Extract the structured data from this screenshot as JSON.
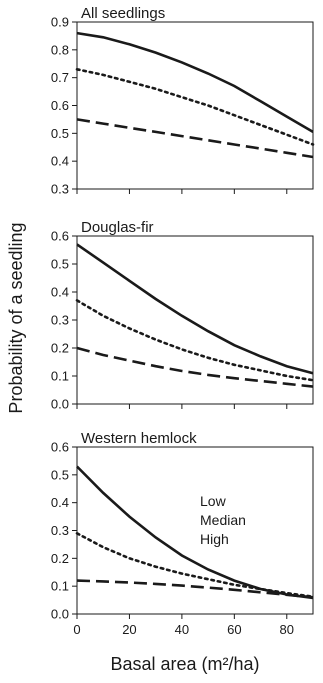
{
  "chart_data": {
    "type": "line",
    "xlabel": "Basal area (m²/ha)",
    "ylabel": "Probability of a seedling",
    "x_ticks": [
      "0",
      "20",
      "40",
      "60",
      "80"
    ],
    "xlim": [
      0,
      90
    ],
    "x": [
      0,
      10,
      20,
      30,
      40,
      50,
      60,
      70,
      80,
      90
    ],
    "legend": [
      "Low",
      "Median",
      "High"
    ],
    "series_styles": [
      "dashed",
      "dotted",
      "solid"
    ],
    "panels": [
      {
        "title": "All seedlings",
        "ylim": [
          0.3,
          0.9
        ],
        "y_ticks": [
          "0.3",
          "0.4",
          "0.5",
          "0.6",
          "0.7",
          "0.8",
          "0.9"
        ],
        "series": [
          {
            "style": "dashed",
            "values": [
              0.55,
              0.535,
              0.52,
              0.505,
              0.49,
              0.475,
              0.46,
              0.445,
              0.43,
              0.415
            ]
          },
          {
            "style": "dotted",
            "values": [
              0.73,
              0.71,
              0.685,
              0.66,
              0.63,
              0.6,
              0.565,
              0.53,
              0.495,
              0.46
            ]
          },
          {
            "style": "solid",
            "values": [
              0.86,
              0.845,
              0.82,
              0.79,
              0.755,
              0.715,
              0.67,
              0.615,
              0.56,
              0.505
            ]
          }
        ]
      },
      {
        "title": "Douglas-fir",
        "ylim": [
          0.0,
          0.6
        ],
        "y_ticks": [
          "0.0",
          "0.1",
          "0.2",
          "0.3",
          "0.4",
          "0.5",
          "0.6"
        ],
        "series": [
          {
            "style": "dashed",
            "values": [
              0.2,
              0.175,
              0.155,
              0.135,
              0.118,
              0.104,
              0.092,
              0.082,
              0.072,
              0.062
            ]
          },
          {
            "style": "dotted",
            "values": [
              0.37,
              0.315,
              0.27,
              0.23,
              0.195,
              0.165,
              0.14,
              0.12,
              0.1,
              0.085
            ]
          },
          {
            "style": "solid",
            "values": [
              0.57,
              0.505,
              0.44,
              0.375,
              0.315,
              0.26,
              0.21,
              0.17,
              0.135,
              0.11
            ]
          }
        ]
      },
      {
        "title": "Western hemlock",
        "ylim": [
          0.0,
          0.6
        ],
        "y_ticks": [
          "0.0",
          "0.1",
          "0.2",
          "0.3",
          "0.4",
          "0.5",
          "0.6"
        ],
        "series": [
          {
            "style": "dashed",
            "values": [
              0.12,
              0.117,
              0.113,
              0.108,
              0.102,
              0.095,
              0.087,
              0.078,
              0.069,
              0.06
            ]
          },
          {
            "style": "dotted",
            "values": [
              0.29,
              0.24,
              0.2,
              0.17,
              0.145,
              0.125,
              0.105,
              0.09,
              0.075,
              0.062
            ]
          },
          {
            "style": "solid",
            "values": [
              0.53,
              0.435,
              0.35,
              0.275,
              0.21,
              0.16,
              0.12,
              0.09,
              0.07,
              0.058
            ]
          }
        ]
      }
    ]
  }
}
